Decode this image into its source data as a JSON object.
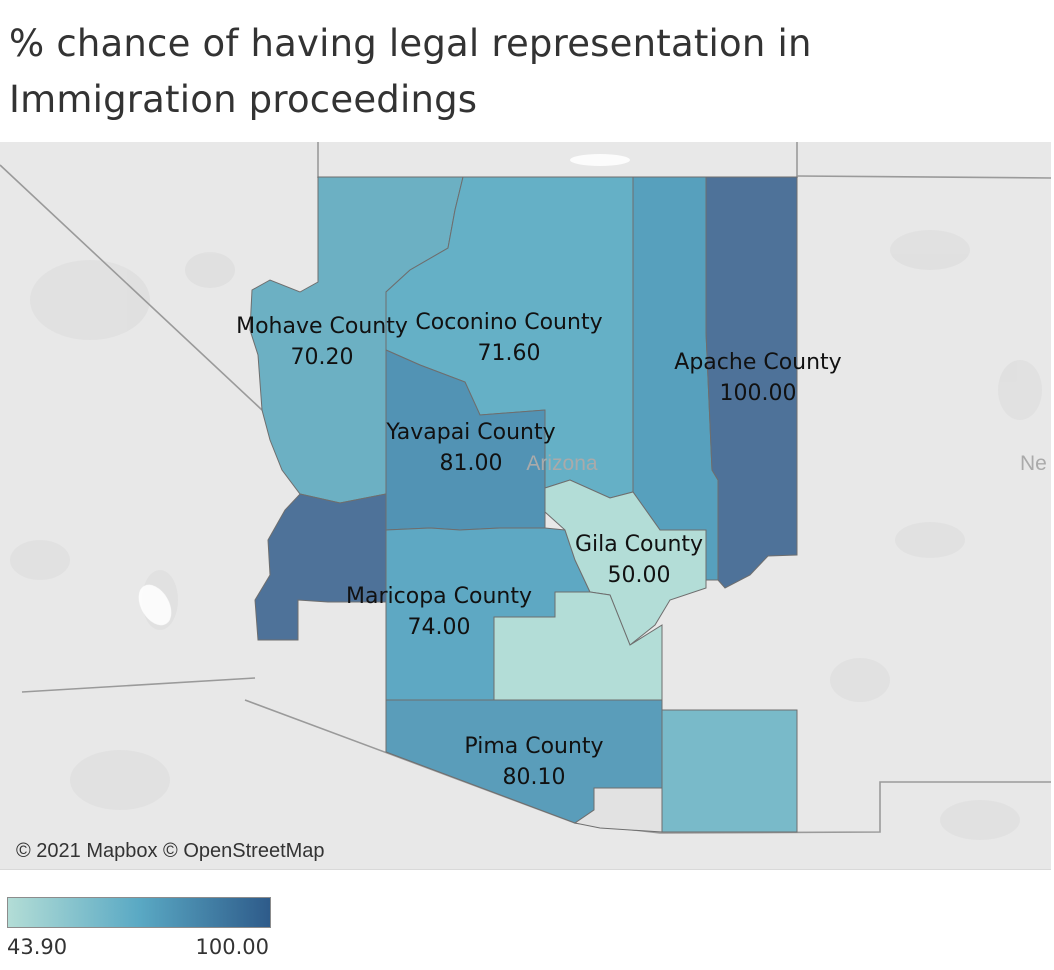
{
  "title": {
    "line1": "% chance of  having legal representation in",
    "line2": "Immigration proceedings"
  },
  "map": {
    "state_label": "Arizona",
    "neighbor_label": "Ne",
    "attribution": "© 2021 Mapbox © OpenStreetMap",
    "counties": [
      {
        "name": "Mohave County",
        "value": "70.20"
      },
      {
        "name": "Coconino County",
        "value": "71.60"
      },
      {
        "name": "Apache County",
        "value": "100.00"
      },
      {
        "name": "Yavapai County",
        "value": "81.00"
      },
      {
        "name": "Gila County",
        "value": "50.00"
      },
      {
        "name": "Maricopa County",
        "value": "74.00"
      },
      {
        "name": "Pima County",
        "value": "80.10"
      }
    ]
  },
  "legend": {
    "min": "43.90",
    "max": "100.00",
    "color_min": "#b3ddd6",
    "color_max": "#2e5b8a"
  },
  "colors": {
    "mohave": "#6cb0c3",
    "coconino": "#65b0c6",
    "navajo": "#57a0bd",
    "apache": "#4e7299",
    "yavapai": "#5293b4",
    "la_paz": "#4e7299",
    "gila": "#b3ddd7",
    "maricopa": "#5ea8c3",
    "pinal": "#b3ddd7",
    "pima": "#5a9dba",
    "cochise": "#79bac9"
  }
}
